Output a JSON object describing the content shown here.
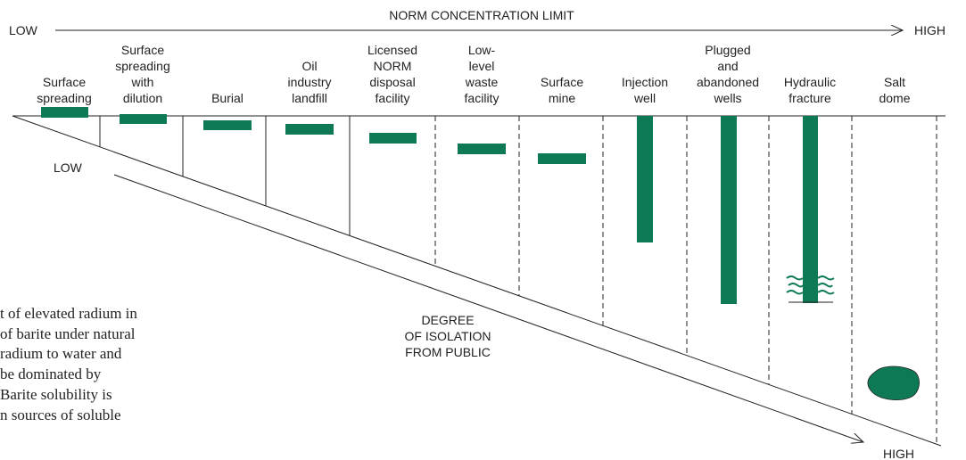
{
  "top_axis": {
    "low": "LOW",
    "title": "NORM CONCENTRATION LIMIT",
    "high": "HIGH"
  },
  "columns": [
    {
      "label": [
        "Surface",
        "spreading"
      ]
    },
    {
      "label": [
        "Surface",
        "spreading",
        "with",
        "dilution"
      ]
    },
    {
      "label": [
        "Burial"
      ]
    },
    {
      "label": [
        "Oil",
        "industry",
        "landfill"
      ]
    },
    {
      "label": [
        "Licensed",
        "NORM",
        "disposal",
        "facility"
      ]
    },
    {
      "label": [
        "Low-",
        "level",
        "waste",
        "facility"
      ]
    },
    {
      "label": [
        "Surface",
        "mine"
      ]
    },
    {
      "label": [
        "Injection",
        "well"
      ]
    },
    {
      "label": [
        "Plugged",
        "and",
        "abandoned",
        "wells"
      ]
    },
    {
      "label": [
        "Hydraulic",
        "fracture"
      ]
    },
    {
      "label": [
        "Salt",
        "dome"
      ]
    }
  ],
  "isolation_axis": {
    "low": "LOW",
    "title": [
      "DEGREE",
      "OF ISOLATION",
      "FROM PUBLIC"
    ],
    "high": "HIGH"
  },
  "paragraph": [
    "t of elevated radium in",
    "of barite under natural",
    "radium to water and",
    "be dominated by",
    "Barite solubility is",
    "n sources of soluble"
  ]
}
